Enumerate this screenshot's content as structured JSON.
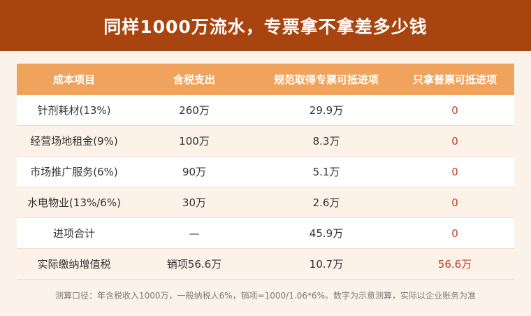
{
  "title": "同样1000万流水，专票拿不拿差多少钱",
  "table": {
    "headers": [
      "成本项目",
      "含税支出",
      "规范取得专票可抵进项",
      "只拿普票可抵进项"
    ],
    "rows": [
      [
        "针剂耗材(13%)",
        "260万",
        "29.9万",
        "0"
      ],
      [
        "经营场地租金(9%)",
        "100万",
        "8.3万",
        "0"
      ],
      [
        "市场推广服务(6%)",
        "90万",
        "5.1万",
        "0"
      ],
      [
        "水电物业(13%/6%)",
        "30万",
        "2.6万",
        "0"
      ],
      [
        "进项合计",
        "—",
        "45.9万",
        "0"
      ],
      [
        "实际缴纳增值税",
        "销项56.6万",
        "10.7万",
        "56.6万"
      ]
    ]
  },
  "footnote": "测算口径：年含税收入1000万，一般纳税人6%，销项=1000/1.06*6%。数字为示意测算，实际以企业账务为准",
  "colors": {
    "banner": "#a8440f",
    "header": "#f0a35c",
    "highlight_red": "#c53a2a",
    "background": "#fbf3ea"
  }
}
